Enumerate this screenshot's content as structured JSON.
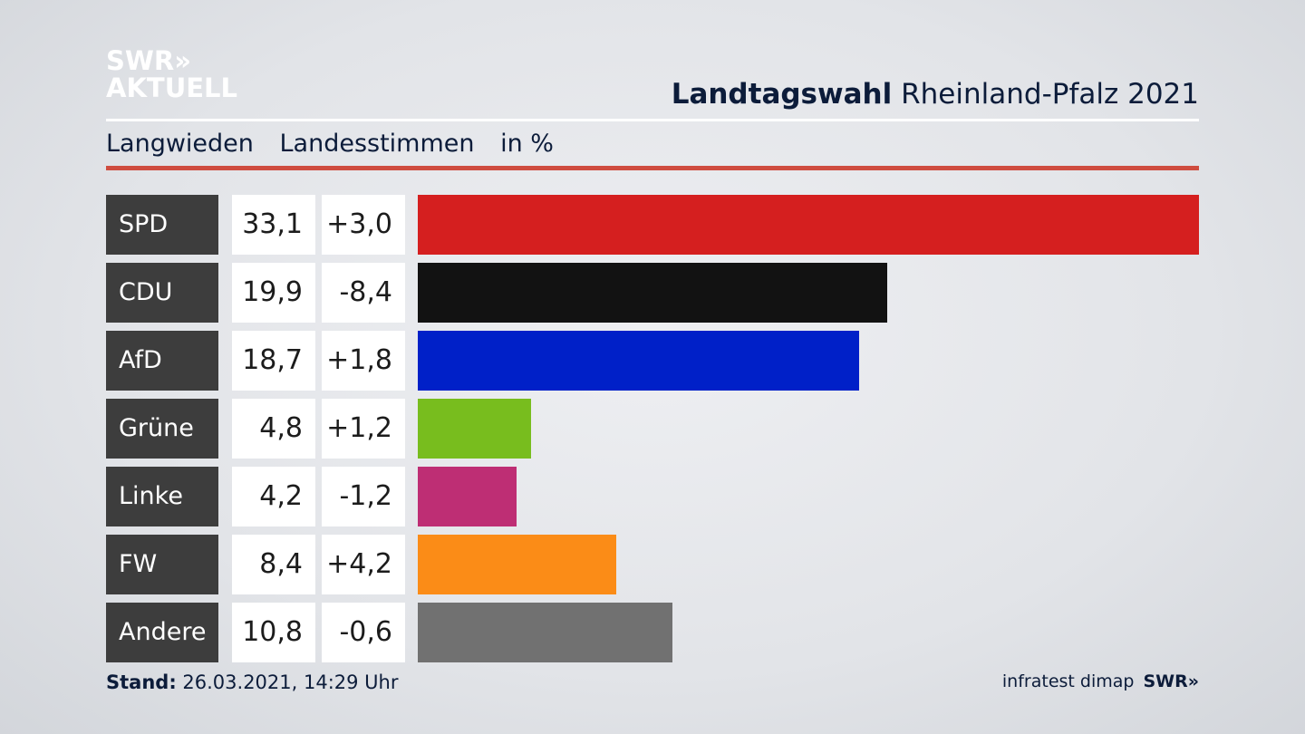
{
  "brand": {
    "line1": "SWR»",
    "line2": "AKTUELL"
  },
  "header": {
    "title_bold": "Landtagswahl",
    "title_rest": " Rheinland-Pfalz 2021"
  },
  "subtitle": {
    "place": "Langwieden",
    "kind": "Landesstimmen",
    "unit": "in %"
  },
  "colors": {
    "accent_rule": "#cf4c3f",
    "party_cell": "#3d3d3d"
  },
  "chart_data": {
    "type": "bar",
    "categories": [
      "SPD",
      "CDU",
      "AfD",
      "Grüne",
      "Linke",
      "FW",
      "Andere"
    ],
    "values": [
      33.1,
      19.9,
      18.7,
      4.8,
      4.2,
      8.4,
      10.8
    ],
    "value_labels": [
      "33,1",
      "19,9",
      "18,7",
      "4,8",
      "4,2",
      "8,4",
      "10,8"
    ],
    "change_labels": [
      "+3,0",
      "-8,4",
      "+1,8",
      "+1,2",
      "-1,2",
      "+4,2",
      "-0,6"
    ],
    "changes": [
      3.0,
      -8.4,
      1.8,
      1.2,
      -1.2,
      4.2,
      -0.6
    ],
    "bar_colors": [
      "#d51f1f",
      "#121212",
      "#0020c8",
      "#78bd1e",
      "#be2e74",
      "#fb8c17",
      "#717171"
    ],
    "xlim": [
      0,
      33.1
    ],
    "grid": false
  },
  "footer": {
    "stand_label": "Stand:",
    "stand_value": " 26.03.2021, 14:29 Uhr",
    "source": "infratest dimap",
    "brand": "SWR»"
  }
}
